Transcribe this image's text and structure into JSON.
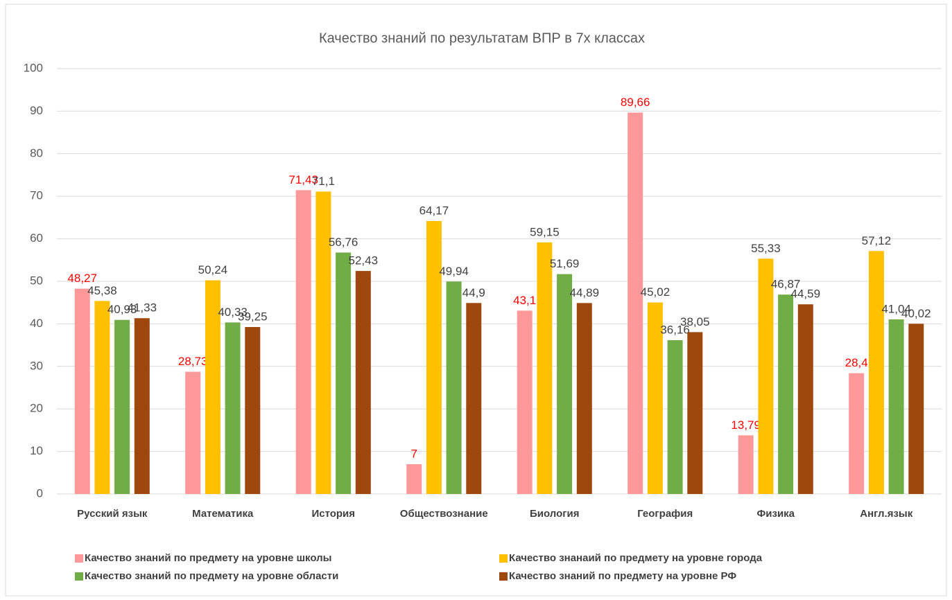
{
  "chart_data": {
    "type": "bar",
    "title": "Качество знаний по результатам ВПР в 7х классах",
    "categories": [
      "Русский язык",
      "Математика",
      "История",
      "Обществознание",
      "Биология",
      "География",
      "Физика",
      "Англ.язык"
    ],
    "series": [
      {
        "name": "Качество знаний по предмету на уровне школы",
        "color": "#ff9999",
        "label_color": "#ff0000",
        "values": [
          48.27,
          28.73,
          71.43,
          7,
          43.1,
          89.66,
          13.79,
          28.4
        ],
        "value_labels": [
          "48,27",
          "28,73",
          "71,43",
          "7",
          "43,1",
          "89,66",
          "13,79",
          "28,4"
        ]
      },
      {
        "name": "Качество знанаий по предмету на уровне города",
        "color": "#ffc000",
        "label_color": "#404040",
        "values": [
          45.38,
          50.24,
          71.1,
          64.17,
          59.15,
          45.02,
          55.33,
          57.12
        ],
        "value_labels": [
          "45,38",
          "50,24",
          "71,1",
          "64,17",
          "59,15",
          "45,02",
          "55,33",
          "57,12"
        ]
      },
      {
        "name": "Качество знаний по предмету на уровне области",
        "color": "#70ad47",
        "label_color": "#404040",
        "values": [
          40.93,
          40.33,
          56.76,
          49.94,
          51.69,
          36.16,
          46.87,
          41.04
        ],
        "value_labels": [
          "40,93",
          "40,33",
          "56,76",
          "49,94",
          "51,69",
          "36,16",
          "46,87",
          "41,04"
        ]
      },
      {
        "name": "Качество знаний по предмету на уровне РФ",
        "color": "#9e480e",
        "label_color": "#404040",
        "values": [
          41.33,
          39.25,
          52.43,
          44.9,
          44.89,
          38.05,
          44.59,
          40.02
        ],
        "value_labels": [
          "41,33",
          "39,25",
          "52,43",
          "44,9",
          "44,89",
          "38,05",
          "44,59",
          "40,02"
        ]
      }
    ],
    "ylim": [
      0,
      100
    ],
    "yticks": [
      0,
      10,
      20,
      30,
      40,
      50,
      60,
      70,
      80,
      90,
      100
    ],
    "grid": true
  }
}
